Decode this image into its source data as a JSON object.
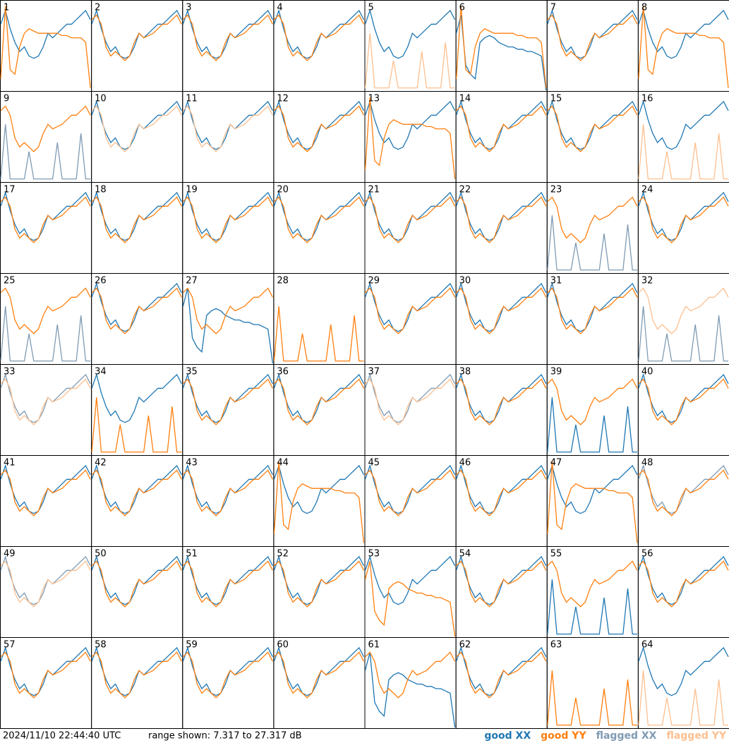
{
  "chart_data": {
    "type": "line-grid",
    "ylim": [
      7.317,
      27.317
    ],
    "colors": {
      "good_xx": "#1f77b4",
      "good_yy": "#ff7f0e",
      "flagged_xx": "#7f9bb4",
      "flagged_yy": "#fdbf8f"
    },
    "profiles": {
      "typical_xx": [
        22,
        25,
        21,
        18,
        16,
        17,
        15,
        14.5,
        15,
        17,
        20,
        19,
        20,
        21,
        22,
        22,
        23,
        24,
        25,
        23
      ],
      "typical_yy": [
        23,
        24,
        22,
        17,
        15,
        16,
        15,
        14,
        15,
        18,
        20,
        19,
        19.5,
        20,
        21,
        22,
        22,
        23,
        24,
        22
      ],
      "hump": [
        10,
        26,
        12,
        11,
        17,
        20,
        21,
        20.5,
        20,
        20,
        20,
        20,
        20,
        19.5,
        19.5,
        19,
        19,
        19,
        18,
        8
      ],
      "dip": [
        20,
        24,
        13,
        11,
        10,
        18,
        19,
        19.5,
        19,
        18,
        17.5,
        17,
        17,
        16.5,
        16.5,
        16,
        16,
        15.5,
        15,
        7.5
      ],
      "spiky": [
        8,
        20,
        8,
        8,
        8,
        8,
        14,
        8,
        8,
        8,
        8,
        8,
        16,
        8,
        8,
        8,
        8,
        18,
        8,
        8
      ]
    },
    "panels": [
      {
        "label": "1",
        "xx": "typical_xx",
        "yy": "hump"
      },
      {
        "label": "2",
        "xx": "typical_xx",
        "yy": "typical_yy"
      },
      {
        "label": "3",
        "xx": "typical_xx",
        "yy": "typical_yy"
      },
      {
        "label": "4",
        "xx": "typical_xx",
        "yy": "typical_yy"
      },
      {
        "label": "5",
        "xx": "typical_xx",
        "yy": "spiky",
        "yy_flagged": true
      },
      {
        "label": "6",
        "xx": "dip",
        "yy": "hump"
      },
      {
        "label": "7",
        "xx": "typical_xx",
        "yy": "typical_yy"
      },
      {
        "label": "8",
        "xx": "typical_xx",
        "yy": "hump"
      },
      {
        "label": "9",
        "xx": "spiky",
        "xx_flagged": true,
        "yy": "typical_yy"
      },
      {
        "label": "10",
        "xx": "typical_xx",
        "yy": "typical_yy",
        "yy_flagged": true
      },
      {
        "label": "11",
        "xx": "typical_xx",
        "yy": "typical_yy",
        "yy_flagged": true
      },
      {
        "label": "12",
        "xx": "typical_xx",
        "yy": "typical_yy"
      },
      {
        "label": "13",
        "xx": "typical_xx",
        "yy": "hump"
      },
      {
        "label": "14",
        "xx": "typical_xx",
        "yy": "typical_yy"
      },
      {
        "label": "15",
        "xx": "typical_xx",
        "yy": "typical_yy"
      },
      {
        "label": "16",
        "xx": "typical_xx",
        "yy": "spiky",
        "yy_flagged": true
      },
      {
        "label": "17",
        "xx": "typical_xx",
        "yy": "typical_yy"
      },
      {
        "label": "18",
        "xx": "typical_xx",
        "yy": "typical_yy"
      },
      {
        "label": "19",
        "xx": "typical_xx",
        "yy": "typical_yy"
      },
      {
        "label": "20",
        "xx": "typical_xx",
        "yy": "typical_yy"
      },
      {
        "label": "21",
        "xx": "typical_xx",
        "yy": "typical_yy"
      },
      {
        "label": "22",
        "xx": "typical_xx",
        "yy": "typical_yy"
      },
      {
        "label": "23",
        "xx": "spiky",
        "xx_flagged": true,
        "yy": "typical_yy"
      },
      {
        "label": "24",
        "xx": "typical_xx",
        "yy": "typical_yy"
      },
      {
        "label": "25",
        "xx": "spiky",
        "xx_flagged": true,
        "yy": "typical_yy"
      },
      {
        "label": "26",
        "xx": "typical_xx",
        "yy": "typical_yy"
      },
      {
        "label": "27",
        "xx": "dip",
        "yy": "typical_yy"
      },
      {
        "label": "28",
        "yy": "spiky"
      },
      {
        "label": "29",
        "xx": "typical_xx",
        "yy": "typical_yy"
      },
      {
        "label": "30",
        "xx": "typical_xx",
        "yy": "typical_yy"
      },
      {
        "label": "31",
        "xx": "typical_xx",
        "yy": "typical_yy"
      },
      {
        "label": "32",
        "xx": "spiky",
        "xx_flagged": true,
        "yy": "typical_yy",
        "yy_flagged": true
      },
      {
        "label": "33",
        "xx": "typical_xx",
        "xx_flagged": true,
        "yy": "typical_yy",
        "yy_flagged": true
      },
      {
        "label": "34",
        "xx": "typical_xx",
        "yy": "spiky"
      },
      {
        "label": "35",
        "xx": "typical_xx",
        "yy": "typical_yy"
      },
      {
        "label": "36",
        "xx": "typical_xx",
        "yy": "typical_yy"
      },
      {
        "label": "37",
        "xx": "typical_xx",
        "xx_flagged": true,
        "yy": "typical_yy",
        "yy_flagged": true
      },
      {
        "label": "38",
        "xx": "typical_xx",
        "yy": "typical_yy"
      },
      {
        "label": "39",
        "xx": "spiky",
        "yy": "typical_yy"
      },
      {
        "label": "40",
        "xx": "typical_xx",
        "yy": "typical_yy"
      },
      {
        "label": "41",
        "xx": "typical_xx",
        "yy": "typical_yy"
      },
      {
        "label": "42",
        "xx": "typical_xx",
        "yy": "typical_yy"
      },
      {
        "label": "43",
        "xx": "typical_xx",
        "yy": "typical_yy"
      },
      {
        "label": "44",
        "xx": "typical_xx",
        "yy": "hump"
      },
      {
        "label": "45",
        "xx": "typical_xx",
        "yy": "typical_yy"
      },
      {
        "label": "46",
        "xx": "typical_xx",
        "yy": "typical_yy"
      },
      {
        "label": "47",
        "xx": "typical_xx",
        "yy": "hump"
      },
      {
        "label": "48",
        "xx": "typical_xx",
        "xx_flagged": true,
        "yy": "typical_yy"
      },
      {
        "label": "49",
        "xx": "typical_xx",
        "xx_flagged": true,
        "yy": "typical_yy",
        "yy_flagged": true
      },
      {
        "label": "50",
        "xx": "typical_xx",
        "yy": "typical_yy"
      },
      {
        "label": "51",
        "xx": "typical_xx",
        "yy": "typical_yy"
      },
      {
        "label": "52",
        "xx": "typical_xx",
        "yy": "typical_yy"
      },
      {
        "label": "53",
        "xx": "typical_xx",
        "yy": "dip"
      },
      {
        "label": "54",
        "xx": "typical_xx",
        "yy": "typical_yy"
      },
      {
        "label": "55",
        "xx": "spiky",
        "yy": "typical_yy"
      },
      {
        "label": "56",
        "xx": "typical_xx",
        "yy": "typical_yy"
      },
      {
        "label": "57",
        "xx": "typical_xx",
        "yy": "typical_yy"
      },
      {
        "label": "58",
        "xx": "typical_xx",
        "yy": "typical_yy"
      },
      {
        "label": "59",
        "xx": "typical_xx",
        "yy": "typical_yy"
      },
      {
        "label": "60",
        "xx": "typical_xx",
        "yy": "typical_yy"
      },
      {
        "label": "61",
        "xx": "dip",
        "yy": "typical_yy"
      },
      {
        "label": "62",
        "xx": "typical_xx",
        "yy": "typical_yy"
      },
      {
        "label": "63",
        "yy": "spiky"
      },
      {
        "label": "64",
        "xx": "typical_xx",
        "yy": "spiky",
        "yy_flagged": true
      }
    ],
    "timestamp": "2024/11/10 22:44:40 UTC",
    "range_text": "range shown: 7.317 to 27.317 dB",
    "legend": [
      {
        "name": "good XX",
        "key": "good_xx"
      },
      {
        "name": "good YY",
        "key": "good_yy"
      },
      {
        "name": "flagged XX",
        "key": "flagged_xx"
      },
      {
        "name": "flagged YY",
        "key": "flagged_yy"
      }
    ]
  }
}
